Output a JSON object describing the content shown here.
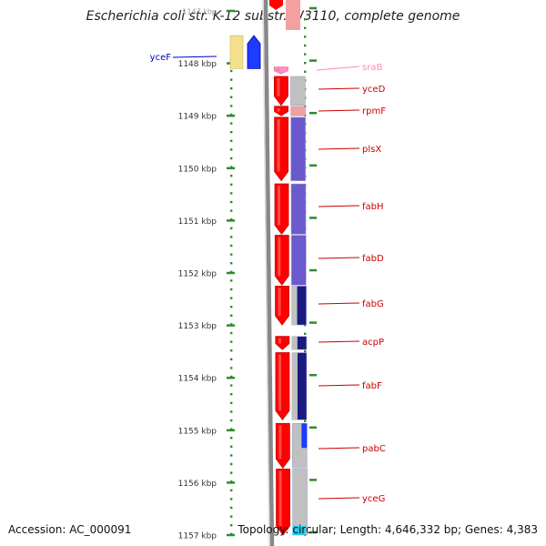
{
  "title": "Escherichia coli str. K-12 substr. W3110, complete genome",
  "footer": {
    "accession": "Accession: AC_000091",
    "topology": "Topology: circular; Length: 4,646,332 bp; Genes: 4,383"
  },
  "colors": {
    "ruler_dots": "#2e8b2e",
    "kbp_label": "#333333",
    "backbone": "#888888",
    "gene_red": "#ff0000",
    "gene_red_dark": "#cc0000",
    "gene_pink": "#ff8fc8",
    "gene_label_red": "#cc0000",
    "gene_label_pink": "#ff88bb",
    "gene_label_blue": "#0000cc",
    "cog_purple": "#6a5acd",
    "cog_navy": "#1a1a80",
    "cog_gray": "#c0c0c0",
    "cog_blue": "#1e3cff",
    "cog_cyan": "#20c8f0",
    "cog_yellow": "#f2e08c"
  },
  "ruler": {
    "unit": "kbp",
    "ticks": [
      1147,
      1148,
      1149,
      1150,
      1151,
      1152,
      1153,
      1154,
      1155,
      1156,
      1157
    ]
  },
  "genes": [
    {
      "name": "sraB",
      "strand": "-",
      "start_kbp": 1148.07,
      "end_kbp": 1148.2,
      "color": "pink",
      "cog": "none"
    },
    {
      "name": "yceD",
      "strand": "-",
      "start_kbp": 1148.25,
      "end_kbp": 1148.8,
      "color": "red",
      "cog": "gray"
    },
    {
      "name": "rpmF",
      "strand": "-",
      "start_kbp": 1148.82,
      "end_kbp": 1149.0,
      "color": "red",
      "cog": "pink"
    },
    {
      "name": "plsX",
      "strand": "-",
      "start_kbp": 1149.03,
      "end_kbp": 1150.24,
      "color": "red",
      "cog": "purple"
    },
    {
      "name": "fabH",
      "strand": "-",
      "start_kbp": 1150.3,
      "end_kbp": 1151.26,
      "color": "red",
      "cog": "purple"
    },
    {
      "name": "fabD",
      "strand": "-",
      "start_kbp": 1151.28,
      "end_kbp": 1152.23,
      "color": "red",
      "cog": "purple"
    },
    {
      "name": "fabG",
      "strand": "-",
      "start_kbp": 1152.25,
      "end_kbp": 1152.99,
      "color": "red",
      "cog": "navy"
    },
    {
      "name": "acpP",
      "strand": "-",
      "start_kbp": 1153.21,
      "end_kbp": 1153.46,
      "color": "red",
      "cog": "navy"
    },
    {
      "name": "fabF",
      "strand": "-",
      "start_kbp": 1153.52,
      "end_kbp": 1154.8,
      "color": "red",
      "cog": "navy"
    },
    {
      "name": "pabC",
      "strand": "-",
      "start_kbp": 1154.87,
      "end_kbp": 1155.72,
      "color": "red",
      "cog": "gray_blue"
    },
    {
      "name": "yceG",
      "strand": "-",
      "start_kbp": 1155.74,
      "end_kbp": 1157.0,
      "color": "red",
      "cog": "gray_cyan"
    },
    {
      "name": "yceF",
      "strand": "+",
      "start_kbp": 1147.47,
      "end_kbp": 1148.1,
      "color": "blue",
      "cog": "yellow"
    }
  ]
}
